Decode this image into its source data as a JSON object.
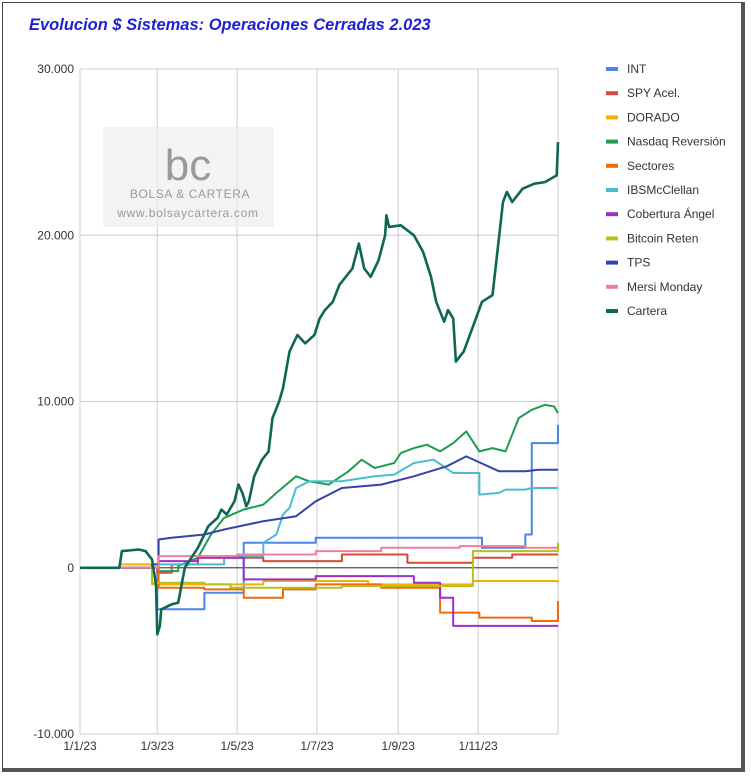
{
  "chart_data": {
    "type": "line",
    "title": "Evolucion $ Sistemas: Operaciones Cerradas 2.023",
    "xlabel": "",
    "ylabel": "",
    "x_ticks": [
      "1/1/23",
      "1/3/23",
      "1/5/23",
      "1/7/23",
      "1/9/23",
      "1/11/23"
    ],
    "y_ticks": [
      "-10.000",
      "0",
      "10.000",
      "20.000",
      "30.000"
    ],
    "ylim": [
      -10000,
      30000
    ],
    "x_range_days": [
      0,
      365
    ],
    "grid": true,
    "legend_position": "right",
    "watermark": {
      "logo": "bc",
      "name": "BOLSA & CARTERA",
      "url": "www.bolsaycartera.com"
    },
    "series": [
      {
        "name": "INT",
        "color": "#4a86e8",
        "points": [
          [
            0,
            0
          ],
          [
            59,
            0
          ],
          [
            59,
            -2500
          ],
          [
            95,
            -2500
          ],
          [
            95,
            -1500
          ],
          [
            125,
            -1500
          ],
          [
            125,
            1500
          ],
          [
            180,
            1500
          ],
          [
            180,
            1800
          ],
          [
            215,
            1800
          ],
          [
            215,
            1800
          ],
          [
            307,
            1800
          ],
          [
            307,
            1200
          ],
          [
            340,
            1200
          ],
          [
            340,
            2000
          ],
          [
            345,
            2000
          ],
          [
            345,
            7500
          ],
          [
            365,
            7500
          ],
          [
            365,
            8600
          ]
        ]
      },
      {
        "name": "SPY Acel.",
        "color": "#d64a3a",
        "points": [
          [
            0,
            0
          ],
          [
            59,
            0
          ],
          [
            59,
            -300
          ],
          [
            70,
            -300
          ],
          [
            70,
            200
          ],
          [
            90,
            200
          ],
          [
            90,
            600
          ],
          [
            140,
            600
          ],
          [
            140,
            400
          ],
          [
            200,
            400
          ],
          [
            200,
            800
          ],
          [
            250,
            800
          ],
          [
            250,
            300
          ],
          [
            300,
            300
          ],
          [
            300,
            600
          ],
          [
            330,
            600
          ],
          [
            330,
            800
          ],
          [
            365,
            800
          ]
        ]
      },
      {
        "name": "DORADO",
        "color": "#f0b400",
        "points": [
          [
            0,
            0
          ],
          [
            30,
            0
          ],
          [
            30,
            200
          ],
          [
            55,
            200
          ],
          [
            55,
            -1000
          ],
          [
            140,
            -1000
          ],
          [
            140,
            -800
          ],
          [
            220,
            -800
          ],
          [
            220,
            -1000
          ],
          [
            300,
            -1000
          ],
          [
            300,
            -800
          ],
          [
            365,
            -800
          ],
          [
            365,
            -900
          ]
        ]
      },
      {
        "name": "Nasdaq Reversión",
        "color": "#1e9c52",
        "points": [
          [
            0,
            0
          ],
          [
            60,
            0
          ],
          [
            60,
            -200
          ],
          [
            75,
            -200
          ],
          [
            75,
            100
          ],
          [
            90,
            600
          ],
          [
            100,
            2000
          ],
          [
            110,
            3000
          ],
          [
            125,
            3500
          ],
          [
            140,
            3800
          ],
          [
            150,
            4500
          ],
          [
            165,
            5500
          ],
          [
            175,
            5200
          ],
          [
            190,
            5000
          ],
          [
            205,
            5800
          ],
          [
            215,
            6500
          ],
          [
            225,
            6000
          ],
          [
            240,
            6300
          ],
          [
            245,
            6900
          ],
          [
            255,
            7200
          ],
          [
            265,
            7400
          ],
          [
            275,
            7000
          ],
          [
            285,
            7500
          ],
          [
            295,
            8200
          ],
          [
            305,
            7000
          ],
          [
            315,
            7200
          ],
          [
            325,
            7000
          ],
          [
            335,
            9000
          ],
          [
            345,
            9500
          ],
          [
            355,
            9800
          ],
          [
            362,
            9700
          ],
          [
            365,
            9300
          ]
        ]
      },
      {
        "name": "Sectores",
        "color": "#f26b0b",
        "points": [
          [
            0,
            0
          ],
          [
            60,
            0
          ],
          [
            60,
            -1200
          ],
          [
            95,
            -1200
          ],
          [
            95,
            -1300
          ],
          [
            125,
            -1300
          ],
          [
            125,
            -1800
          ],
          [
            155,
            -1800
          ],
          [
            155,
            -1300
          ],
          [
            180,
            -1300
          ],
          [
            180,
            -1000
          ],
          [
            230,
            -1000
          ],
          [
            230,
            -1200
          ],
          [
            275,
            -1200
          ],
          [
            275,
            -2700
          ],
          [
            305,
            -2700
          ],
          [
            305,
            -3000
          ],
          [
            345,
            -3000
          ],
          [
            345,
            -3200
          ],
          [
            365,
            -3200
          ],
          [
            365,
            -2000
          ]
        ]
      },
      {
        "name": "IBSMcClellan",
        "color": "#4bbdd0",
        "points": [
          [
            0,
            0
          ],
          [
            60,
            0
          ],
          [
            60,
            200
          ],
          [
            110,
            200
          ],
          [
            110,
            700
          ],
          [
            140,
            700
          ],
          [
            140,
            1500
          ],
          [
            150,
            2000
          ],
          [
            155,
            3200
          ],
          [
            160,
            3600
          ],
          [
            165,
            4800
          ],
          [
            175,
            5200
          ],
          [
            200,
            5200
          ],
          [
            225,
            5500
          ],
          [
            240,
            5600
          ],
          [
            255,
            6300
          ],
          [
            270,
            6500
          ],
          [
            285,
            5700
          ],
          [
            305,
            5700
          ],
          [
            305,
            4400
          ],
          [
            320,
            4500
          ],
          [
            325,
            4700
          ],
          [
            340,
            4700
          ],
          [
            345,
            4800
          ],
          [
            365,
            4800
          ]
        ]
      },
      {
        "name": "Cobertura Ángel",
        "color": "#9b30c9",
        "points": [
          [
            0,
            0
          ],
          [
            60,
            0
          ],
          [
            60,
            400
          ],
          [
            90,
            400
          ],
          [
            90,
            600
          ],
          [
            125,
            600
          ],
          [
            125,
            -700
          ],
          [
            180,
            -700
          ],
          [
            180,
            -500
          ],
          [
            230,
            -500
          ],
          [
            230,
            -500
          ],
          [
            255,
            -500
          ],
          [
            255,
            -900
          ],
          [
            275,
            -900
          ],
          [
            275,
            -1800
          ],
          [
            285,
            -1800
          ],
          [
            285,
            -3500
          ],
          [
            365,
            -3500
          ]
        ]
      },
      {
        "name": "Bitcoin Reten",
        "color": "#b8bf1f",
        "points": [
          [
            0,
            0
          ],
          [
            55,
            0
          ],
          [
            55,
            -900
          ],
          [
            95,
            -900
          ],
          [
            95,
            -1000
          ],
          [
            115,
            -1000
          ],
          [
            115,
            -1200
          ],
          [
            200,
            -1200
          ],
          [
            200,
            -1100
          ],
          [
            300,
            -1100
          ],
          [
            300,
            1000
          ],
          [
            365,
            1000
          ],
          [
            365,
            1500
          ]
        ]
      },
      {
        "name": "TPS",
        "color": "#3544a8",
        "points": [
          [
            0,
            0
          ],
          [
            55,
            0
          ],
          [
            55,
            200
          ],
          [
            60,
            200
          ],
          [
            60,
            1700
          ],
          [
            70,
            1800
          ],
          [
            95,
            2000
          ],
          [
            110,
            2300
          ],
          [
            140,
            2800
          ],
          [
            165,
            3100
          ],
          [
            180,
            4000
          ],
          [
            200,
            4800
          ],
          [
            230,
            5000
          ],
          [
            255,
            5500
          ],
          [
            280,
            6100
          ],
          [
            295,
            6700
          ],
          [
            320,
            5800
          ],
          [
            340,
            5800
          ],
          [
            350,
            5900
          ],
          [
            365,
            5900
          ]
        ]
      },
      {
        "name": "Mersi Monday",
        "color": "#f07f9c",
        "points": [
          [
            0,
            0
          ],
          [
            60,
            0
          ],
          [
            60,
            700
          ],
          [
            120,
            700
          ],
          [
            120,
            800
          ],
          [
            180,
            800
          ],
          [
            180,
            1000
          ],
          [
            230,
            1000
          ],
          [
            230,
            1200
          ],
          [
            290,
            1200
          ],
          [
            290,
            1300
          ],
          [
            340,
            1300
          ],
          [
            340,
            1200
          ],
          [
            365,
            1200
          ]
        ]
      },
      {
        "name": "Cartera",
        "color": "#0e6655",
        "points": [
          [
            0,
            0
          ],
          [
            30,
            0
          ],
          [
            32,
            1000
          ],
          [
            45,
            1100
          ],
          [
            50,
            1000
          ],
          [
            55,
            500
          ],
          [
            58,
            -1000
          ],
          [
            59,
            -4000
          ],
          [
            61,
            -3500
          ],
          [
            62,
            -2500
          ],
          [
            65,
            -2400
          ],
          [
            70,
            -2200
          ],
          [
            75,
            -2100
          ],
          [
            80,
            0
          ],
          [
            85,
            600
          ],
          [
            90,
            1200
          ],
          [
            98,
            2500
          ],
          [
            105,
            3000
          ],
          [
            108,
            3500
          ],
          [
            112,
            3200
          ],
          [
            118,
            4000
          ],
          [
            121,
            5000
          ],
          [
            124,
            4500
          ],
          [
            127,
            3700
          ],
          [
            129,
            4000
          ],
          [
            133,
            5500
          ],
          [
            139,
            6500
          ],
          [
            144,
            7000
          ],
          [
            147,
            9000
          ],
          [
            152,
            10000
          ],
          [
            155,
            10800
          ],
          [
            160,
            13000
          ],
          [
            166,
            14000
          ],
          [
            172,
            13500
          ],
          [
            179,
            14000
          ],
          [
            183,
            15000
          ],
          [
            187,
            15500
          ],
          [
            193,
            16000
          ],
          [
            198,
            17000
          ],
          [
            203,
            17500
          ],
          [
            208,
            18000
          ],
          [
            213,
            19500
          ],
          [
            217,
            18000
          ],
          [
            222,
            17500
          ],
          [
            228,
            18500
          ],
          [
            233,
            20000
          ],
          [
            234,
            21200
          ],
          [
            236,
            20500
          ],
          [
            245,
            20600
          ],
          [
            255,
            20000
          ],
          [
            262,
            19000
          ],
          [
            268,
            17500
          ],
          [
            272,
            16000
          ],
          [
            278,
            14800
          ],
          [
            281,
            15500
          ],
          [
            285,
            15000
          ],
          [
            287,
            12400
          ],
          [
            293,
            13000
          ],
          [
            300,
            14500
          ],
          [
            307,
            16000
          ],
          [
            315,
            16400
          ],
          [
            323,
            22000
          ],
          [
            326,
            22600
          ],
          [
            330,
            22000
          ],
          [
            338,
            22800
          ],
          [
            347,
            23100
          ],
          [
            355,
            23200
          ],
          [
            364,
            23600
          ],
          [
            365,
            25600
          ]
        ]
      }
    ]
  }
}
